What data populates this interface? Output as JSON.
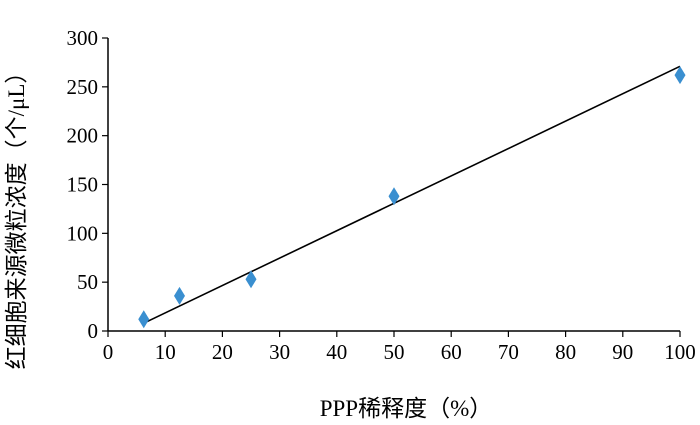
{
  "chart_data": {
    "type": "scatter",
    "xlabel": "PPP稀释度（%）",
    "ylabel": "红细胞来源微粒浓度（个/μL）",
    "xlim": [
      0,
      100
    ],
    "ylim": [
      0,
      300
    ],
    "xticks": [
      0,
      10,
      20,
      30,
      40,
      50,
      60,
      70,
      80,
      90,
      100
    ],
    "yticks": [
      0,
      50,
      100,
      150,
      200,
      250,
      300
    ],
    "series": [
      {
        "x": [
          6.25,
          12.5,
          25,
          50,
          100
        ],
        "y": [
          12,
          36,
          53,
          138,
          262
        ]
      }
    ],
    "trendline": {
      "x": [
        6.25,
        100
      ],
      "y": [
        8,
        271
      ]
    },
    "marker": "diamond",
    "marker_color": "#3a8fd0",
    "line_color": "#000000",
    "grid": false,
    "legend": "none"
  }
}
